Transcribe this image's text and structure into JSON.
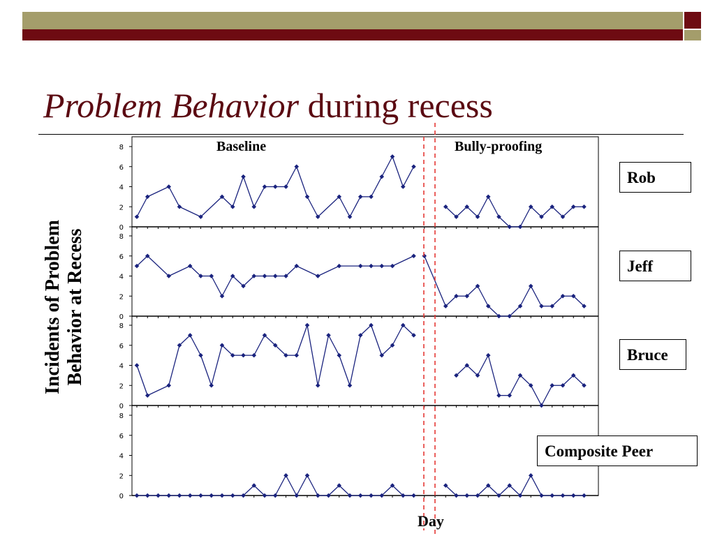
{
  "slide": {
    "title_italic": "Problem Behavior",
    "title_rest": "during recess",
    "colors": {
      "olive": "#a49d6b",
      "maroon": "#6e0b12",
      "series": "#1a237e",
      "phase_line": "#e53935"
    }
  },
  "chart_data": {
    "type": "line",
    "ylabel": "Incidents of Problem Behavior at Recess",
    "xlabel": "Day",
    "phases": [
      "Baseline",
      "Bully-proofing"
    ],
    "ylim": [
      0,
      8
    ],
    "yticks": [
      0,
      2,
      4,
      6,
      8
    ],
    "phase_change_after_day": 27,
    "panels": [
      {
        "name": "Rob",
        "values": [
          1,
          3,
          null,
          4,
          2,
          null,
          1,
          null,
          3,
          2,
          5,
          2,
          4,
          4,
          4,
          6,
          3,
          1,
          null,
          3,
          1,
          3,
          3,
          5,
          7,
          4,
          6,
          null,
          null,
          2,
          1,
          2,
          1,
          3,
          1,
          0,
          0,
          2,
          1,
          2,
          1,
          2,
          2
        ]
      },
      {
        "name": "Jeff",
        "values": [
          5,
          6,
          null,
          4,
          null,
          5,
          4,
          4,
          2,
          4,
          3,
          4,
          4,
          4,
          4,
          5,
          null,
          4,
          null,
          5,
          null,
          5,
          5,
          5,
          5,
          null,
          6,
          6,
          null,
          1,
          2,
          2,
          3,
          1,
          0,
          0,
          1,
          3,
          1,
          1,
          2,
          2,
          1
        ]
      },
      {
        "name": "Bruce",
        "values": [
          4,
          1,
          null,
          2,
          6,
          7,
          5,
          2,
          6,
          5,
          5,
          5,
          7,
          6,
          5,
          5,
          8,
          2,
          7,
          5,
          2,
          7,
          8,
          5,
          6,
          8,
          7,
          null,
          null,
          null,
          3,
          4,
          3,
          5,
          1,
          1,
          3,
          2,
          0,
          2,
          2,
          3,
          2
        ]
      },
      {
        "name": "Composite Peer",
        "values": [
          0,
          0,
          0,
          0,
          0,
          0,
          0,
          0,
          0,
          0,
          0,
          1,
          0,
          0,
          2,
          0,
          2,
          0,
          0,
          1,
          0,
          0,
          0,
          0,
          1,
          0,
          0,
          null,
          null,
          1,
          0,
          0,
          0,
          1,
          0,
          1,
          0,
          2,
          0,
          0,
          0,
          0,
          0
        ]
      }
    ]
  }
}
